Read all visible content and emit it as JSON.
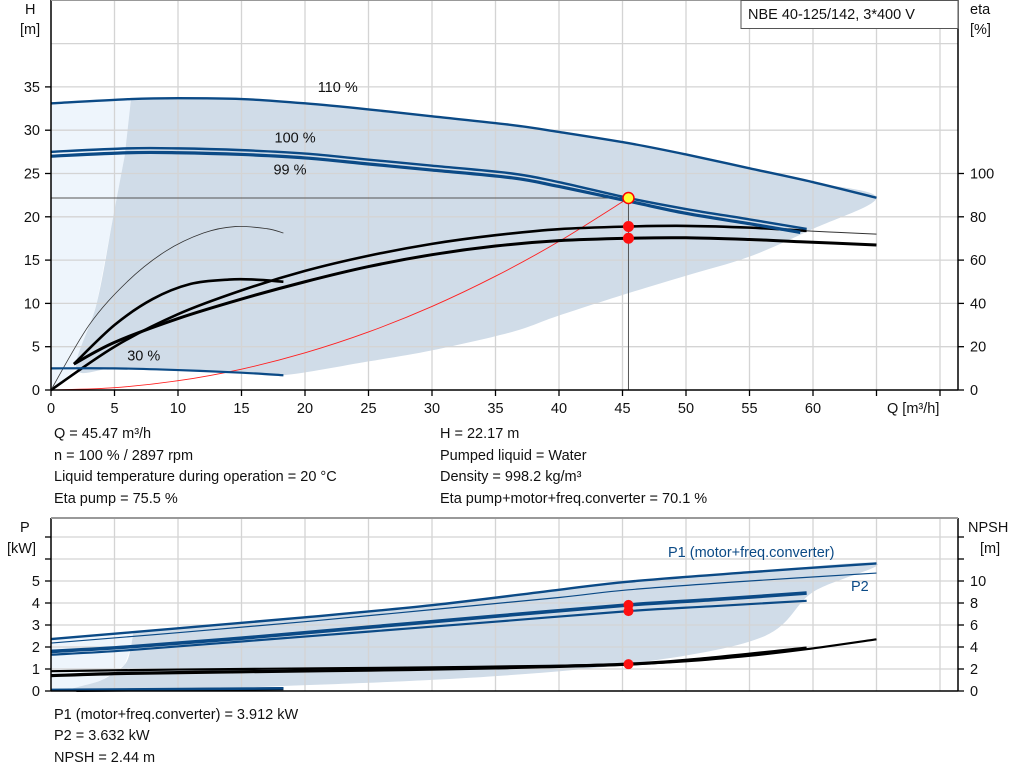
{
  "chart_data": [
    {
      "type": "line",
      "title": "NBE 40-125/142, 3*400 V",
      "xlabel": "Q [m³/h]",
      "ylabel": "H\n[m]",
      "ylabel_left": [
        "H",
        "[m]"
      ],
      "ylabel_right": [
        "eta",
        "[%]"
      ],
      "xlim": [
        0,
        70
      ],
      "ylim": [
        0,
        45
      ],
      "y2lim": [
        0,
        180
      ],
      "grid": true,
      "x_ticks": [
        "0",
        "5",
        "10",
        "15",
        "20",
        "25",
        "30",
        "35",
        "40",
        "45",
        "50",
        "55",
        "60"
      ],
      "y_ticks": [
        "0",
        "5",
        "10",
        "15",
        "20",
        "25",
        "30",
        "35"
      ],
      "y2_ticks": [
        "0",
        "20",
        "40",
        "60",
        "80",
        "100"
      ],
      "head_curves": [
        {
          "label": "110 %",
          "label_at": [
            21,
            34.4
          ],
          "width": 2.4,
          "color": "#0b4a86",
          "points": [
            [
              0,
              33.1
            ],
            [
              6.3,
              33.6
            ],
            [
              10,
              33.7
            ],
            [
              15,
              33.6
            ],
            [
              20,
              33.1
            ],
            [
              25,
              32.4
            ],
            [
              30,
              31.6
            ],
            [
              36.3,
              30.6
            ],
            [
              40,
              29.8
            ],
            [
              45.5,
              28.5
            ],
            [
              50,
              27.2
            ],
            [
              55,
              25.6
            ],
            [
              60,
              24.0
            ],
            [
              65,
              22.2
            ]
          ]
        },
        {
          "label": "100 %",
          "label_at": [
            17.6,
            28.6
          ],
          "width": 2.4,
          "color": "#0b4a86",
          "points": [
            [
              0,
              27.5
            ],
            [
              6,
              27.9
            ],
            [
              10,
              27.9
            ],
            [
              15,
              27.7
            ],
            [
              20,
              27.3
            ],
            [
              25,
              26.6
            ],
            [
              30,
              25.9
            ],
            [
              36.3,
              25.0
            ],
            [
              40,
              24.0
            ],
            [
              45.47,
              22.17
            ],
            [
              50,
              20.9
            ],
            [
              55,
              19.7
            ],
            [
              59.5,
              18.6
            ]
          ]
        },
        {
          "label": "99 %",
          "label_at": [
            17.2,
            27.9
          ],
          "width": 3.2,
          "color": "#0b4a86",
          "points": [
            [
              0,
              27.0
            ],
            [
              6,
              27.4
            ],
            [
              10,
              27.4
            ],
            [
              15,
              27.2
            ],
            [
              20,
              26.8
            ],
            [
              25,
              26.1
            ],
            [
              30,
              25.4
            ],
            [
              36.3,
              24.5
            ],
            [
              40,
              23.5
            ],
            [
              45.5,
              21.8
            ],
            [
              50,
              20.4
            ],
            [
              55,
              19.2
            ],
            [
              59,
              18.2
            ]
          ]
        },
        {
          "label": "30 %",
          "label_at": [
            6,
            3.4
          ],
          "width": 2.2,
          "color": "#0b4a86",
          "points": [
            [
              0,
              2.5
            ],
            [
              5,
              2.5
            ],
            [
              10,
              2.3
            ],
            [
              15,
              2.0
            ],
            [
              18.3,
              1.7
            ]
          ]
        }
      ],
      "eta_curves": [
        {
          "width": 2.6,
          "color": "#000000",
          "points": [
            [
              0,
              0
            ],
            [
              5,
              20
            ],
            [
              10,
              35
            ],
            [
              15,
              46
            ],
            [
              20,
              55
            ],
            [
              25,
              62
            ],
            [
              30,
              67.5
            ],
            [
              35,
              71.5
            ],
            [
              40,
              74.3
            ],
            [
              45.47,
              75.5
            ],
            [
              50,
              75.8
            ],
            [
              55,
              75
            ],
            [
              59.5,
              73.5
            ]
          ]
        },
        {
          "width": 1,
          "color": "#333333",
          "points": [
            [
              59.5,
              73.5
            ],
            [
              62,
              72.8
            ],
            [
              65,
              72
            ]
          ]
        },
        {
          "width": 3.0,
          "color": "#000000",
          "points": [
            [
              1.8,
              12
            ],
            [
              5,
              22
            ],
            [
              10,
              33
            ],
            [
              15,
              42
            ],
            [
              20,
              50
            ],
            [
              25,
              57
            ],
            [
              30,
              62.5
            ],
            [
              35,
              66.5
            ],
            [
              40,
              69
            ],
            [
              45.47,
              70.1
            ],
            [
              50,
              70.3
            ],
            [
              55,
              69.5
            ],
            [
              59,
              68.5
            ],
            [
              65,
              67
            ]
          ]
        },
        {
          "width": 0.8,
          "color": "#333333",
          "points": [
            [
              0,
              0
            ],
            [
              3,
              30
            ],
            [
              6,
              50
            ],
            [
              9,
              64
            ],
            [
              12,
              72.5
            ],
            [
              14.5,
              75.5
            ],
            [
              17,
              74.5
            ],
            [
              18.3,
              72.5
            ]
          ]
        },
        {
          "width": 2.6,
          "color": "#000000",
          "points": [
            [
              1.8,
              12
            ],
            [
              5,
              30
            ],
            [
              8,
              42
            ],
            [
              11,
              49
            ],
            [
              14,
              51
            ],
            [
              16,
              51
            ],
            [
              18.3,
              50
            ]
          ]
        }
      ],
      "system_curve": {
        "color": "#ff2020",
        "points": [
          [
            0,
            0
          ],
          [
            5,
            0.27
          ],
          [
            10,
            1.07
          ],
          [
            15,
            2.41
          ],
          [
            20,
            4.29
          ],
          [
            25,
            6.7
          ],
          [
            30,
            9.65
          ],
          [
            35,
            13.14
          ],
          [
            40,
            17.16
          ],
          [
            45.47,
            22.17
          ]
        ]
      },
      "region_dark": {
        "color": "#d0dce8",
        "points": [
          [
            6.3,
            33.6
          ],
          [
            10,
            33.7
          ],
          [
            15,
            33.6
          ],
          [
            20,
            33.1
          ],
          [
            25,
            32.4
          ],
          [
            30,
            31.6
          ],
          [
            36.3,
            30.6
          ],
          [
            40,
            29.8
          ],
          [
            45.5,
            28.5
          ],
          [
            50,
            27.2
          ],
          [
            55,
            25.6
          ],
          [
            60,
            24.0
          ],
          [
            65,
            22.2
          ],
          [
            60,
            18.6
          ],
          [
            55,
            15.4
          ],
          [
            50,
            13.2
          ],
          [
            45.5,
            11.2
          ],
          [
            40,
            8.6
          ],
          [
            36.3,
            6.7
          ],
          [
            30.1,
            4.6
          ],
          [
            25,
            3.3
          ],
          [
            18.3,
            1.7
          ],
          [
            15,
            2.0
          ],
          [
            10,
            2.3
          ],
          [
            5,
            2.5
          ],
          [
            2,
            2.5
          ],
          [
            3.6,
            10
          ],
          [
            4.9,
            20
          ],
          [
            5.8,
            27
          ]
        ]
      },
      "region_light": {
        "color": "#eef5fc",
        "points": [
          [
            0,
            0
          ],
          [
            0,
            33.1
          ],
          [
            6.3,
            33.6
          ],
          [
            5.8,
            27
          ],
          [
            4.9,
            20
          ],
          [
            3.6,
            10
          ],
          [
            2,
            2.5
          ]
        ]
      },
      "operating_point": {
        "Q": 45.47,
        "H": 22.17,
        "eta_pump": 75.5,
        "eta_total": 70.1,
        "fill": "#ffff33",
        "stroke": "#ff0000"
      }
    },
    {
      "type": "line",
      "xlim": [
        0,
        70
      ],
      "ylim": [
        0,
        7.9
      ],
      "y2lim": [
        0,
        15.8
      ],
      "grid": true,
      "ylabel_left": [
        "P",
        "[kW]"
      ],
      "ylabel_right": [
        "NPSH",
        "[m]"
      ],
      "y_ticks": [
        "0",
        "1",
        "2",
        "3",
        "4",
        "5"
      ],
      "y2_ticks": [
        "0",
        "2",
        "4",
        "6",
        "8",
        "10"
      ],
      "series_labels": [
        {
          "text": "P1 (motor+freq.converter)",
          "color": "#0b4a86"
        },
        {
          "text": "P2",
          "color": "#0b4a86"
        }
      ],
      "power_curves": [
        {
          "width": 2.4,
          "color": "#0b4a86",
          "points": [
            [
              0,
              2.36
            ],
            [
              10,
              2.85
            ],
            [
              20,
              3.35
            ],
            [
              30,
              3.9
            ],
            [
              40,
              4.6
            ],
            [
              45.47,
              4.97
            ],
            [
              55,
              5.4
            ],
            [
              65,
              5.8
            ]
          ]
        },
        {
          "width": 1.2,
          "color": "#0b4a86",
          "points": [
            [
              0,
              2.18
            ],
            [
              10,
              2.65
            ],
            [
              20,
              3.15
            ],
            [
              30,
              3.7
            ],
            [
              40,
              4.25
            ],
            [
              45.47,
              4.6
            ],
            [
              55,
              5.0
            ],
            [
              65,
              5.36
            ]
          ]
        },
        {
          "width": 3.6,
          "color": "#0b4a86",
          "points": [
            [
              0,
              1.8
            ],
            [
              6,
              2.0
            ],
            [
              15,
              2.4
            ],
            [
              25,
              2.9
            ],
            [
              35,
              3.4
            ],
            [
              45.47,
              3.912
            ],
            [
              52,
              4.15
            ],
            [
              59.5,
              4.45
            ]
          ]
        },
        {
          "width": 2.2,
          "color": "#0b4a86",
          "points": [
            [
              0,
              1.65
            ],
            [
              6,
              1.85
            ],
            [
              15,
              2.25
            ],
            [
              25,
              2.7
            ],
            [
              35,
              3.15
            ],
            [
              45.47,
              3.632
            ],
            [
              52,
              3.85
            ],
            [
              59.5,
              4.1
            ]
          ]
        },
        {
          "width": 2.6,
          "color": "#0b4a86",
          "points": [
            [
              0,
              0.05
            ],
            [
              18.3,
              0.12
            ]
          ]
        }
      ],
      "npsh_curves": [
        {
          "width": 2.2,
          "color": "#000000",
          "points": [
            [
              0,
              1.8
            ],
            [
              10,
              1.95
            ],
            [
              20,
              2.05
            ],
            [
              30,
              2.15
            ],
            [
              40,
              2.3
            ],
            [
              45.47,
              2.44
            ],
            [
              50,
              2.7
            ],
            [
              55,
              3.2
            ],
            [
              59.5,
              3.8
            ],
            [
              65,
              4.7
            ]
          ]
        },
        {
          "width": 3.2,
          "color": "#000000",
          "points": [
            [
              0,
              1.4
            ],
            [
              6,
              1.6
            ],
            [
              15,
              1.75
            ],
            [
              25,
              1.9
            ],
            [
              35,
              2.1
            ],
            [
              45.47,
              2.44
            ],
            [
              52,
              3.0
            ],
            [
              59.5,
              3.9
            ]
          ]
        },
        {
          "width": 3.0,
          "color": "#000000",
          "points": [
            [
              2,
              0.05
            ],
            [
              18.3,
              0.2
            ]
          ]
        }
      ],
      "region_dark": {
        "color": "#d0dce8",
        "points": [
          [
            6.5,
            2.7
          ],
          [
            10,
            2.85
          ],
          [
            20,
            3.35
          ],
          [
            30,
            3.9
          ],
          [
            40,
            4.6
          ],
          [
            45.47,
            4.97
          ],
          [
            55,
            5.4
          ],
          [
            65,
            5.8
          ],
          [
            60,
            4.5
          ],
          [
            56,
            2.45
          ],
          [
            46,
            1.27
          ],
          [
            33,
            0.6
          ],
          [
            17,
            0.2
          ],
          [
            7,
            0
          ],
          [
            1.5,
            0
          ],
          [
            4,
            0.5
          ],
          [
            5.8,
            1.2
          ],
          [
            6.3,
            2.0
          ]
        ]
      },
      "region_light": {
        "color": "#eef5fc",
        "points": [
          [
            0,
            0
          ],
          [
            0,
            2.4
          ],
          [
            6.5,
            2.7
          ],
          [
            6.3,
            2.0
          ],
          [
            5.8,
            1.2
          ],
          [
            4,
            0.5
          ],
          [
            1.5,
            0
          ]
        ]
      },
      "operating_points": {
        "P1": 3.912,
        "P2": 3.632,
        "NPSH": 2.44,
        "Q": 45.47
      }
    }
  ],
  "info_top": {
    "left": [
      "Q = 45.47 m³/h",
      "n = 100 % / 2897 rpm",
      "Liquid temperature during operation = 20 °C",
      "Eta pump = 75.5 %"
    ],
    "right": [
      "H = 22.17 m",
      "Pumped liquid = Water",
      "Density = 998.2 kg/m³",
      "Eta pump+motor+freq.converter = 70.1 %"
    ]
  },
  "info_bottom": [
    "P1 (motor+freq.converter) = 3.912 kW",
    "P2 = 3.632 kW",
    "NPSH = 2.44 m"
  ]
}
